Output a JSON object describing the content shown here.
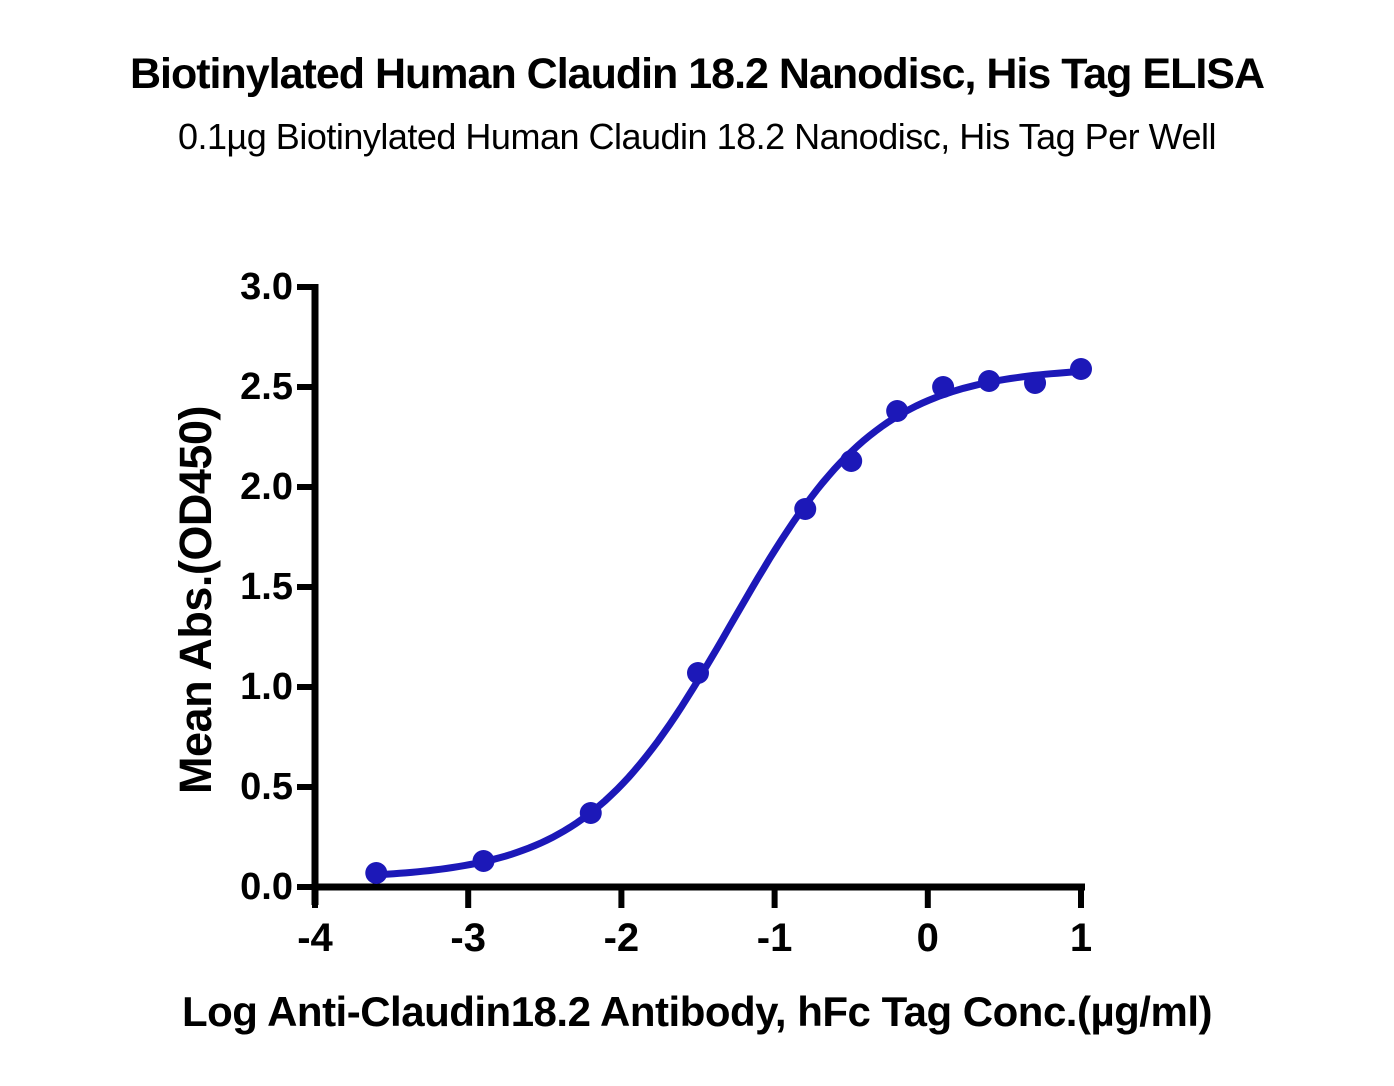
{
  "chart_data": {
    "type": "scatter",
    "title": "Biotinylated Human Claudin 18.2 Nanodisc, His Tag ELISA",
    "subtitle": "0.1µg Biotinylated Human Claudin 18.2 Nanodisc, His Tag Per Well",
    "xlabel": "Log Anti-Claudin18.2 Antibody, hFc Tag Conc.(µg/ml)",
    "ylabel": "Mean Abs.(OD450)",
    "x": [
      -3.6,
      -2.9,
      -2.2,
      -1.5,
      -0.8,
      -0.5,
      -0.2,
      0.1,
      0.4,
      0.7,
      1.0
    ],
    "y": [
      0.07,
      0.13,
      0.37,
      1.07,
      1.89,
      2.13,
      2.38,
      2.5,
      2.53,
      2.52,
      2.59
    ],
    "xlim": [
      -4,
      1
    ],
    "ylim": [
      0.0,
      3.0
    ],
    "x_ticks": [
      -4,
      -3,
      -2,
      -1,
      0,
      1
    ],
    "x_tick_labels": [
      "-4",
      "-3",
      "-2",
      "-1",
      "0",
      "1"
    ],
    "y_ticks": [
      0.0,
      0.5,
      1.0,
      1.5,
      2.0,
      2.5,
      3.0
    ],
    "y_tick_labels": [
      "0.0",
      "0.5",
      "1.0",
      "1.5",
      "2.0",
      "2.5",
      "3.0"
    ],
    "curve_fit": {
      "model": "4PL sigmoid",
      "bottom": 0.04,
      "top": 2.6,
      "log_ec50": -1.28,
      "hill": 0.9
    },
    "grid": false,
    "legend": "none",
    "line_color": "#1c18b8",
    "marker_color": "#1c18b8",
    "axis_color": "#000000",
    "background_color": "#ffffff"
  }
}
